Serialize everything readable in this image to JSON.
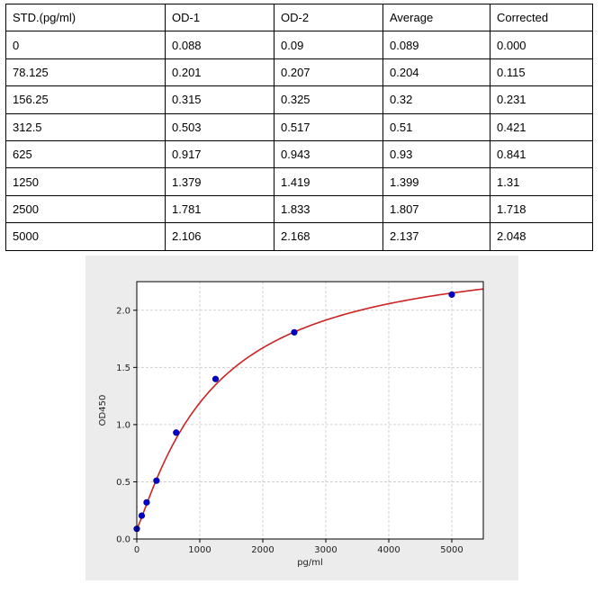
{
  "table": {
    "headers": [
      "STD.(pg/ml)",
      "OD-1",
      "OD-2",
      "Average",
      "Corrected"
    ],
    "rows": [
      [
        "0",
        "0.088",
        "0.09",
        "0.089",
        "0.000"
      ],
      [
        "78.125",
        "0.201",
        "0.207",
        "0.204",
        "0.115"
      ],
      [
        "156.25",
        "0.315",
        "0.325",
        "0.32",
        "0.231"
      ],
      [
        "312.5",
        "0.503",
        "0.517",
        "0.51",
        "0.421"
      ],
      [
        "625",
        "0.917",
        "0.943",
        "0.93",
        "0.841"
      ],
      [
        "1250",
        "1.379",
        "1.419",
        "1.399",
        "1.31"
      ],
      [
        "2500",
        "1.781",
        "1.833",
        "1.807",
        "1.718"
      ],
      [
        "5000",
        "2.106",
        "2.168",
        "2.137",
        "2.048"
      ]
    ]
  },
  "chart_data": {
    "type": "scatter",
    "title": "",
    "xlabel": "pg/ml",
    "ylabel": "OD450",
    "xlim": [
      0,
      5500
    ],
    "ylim": [
      0,
      2.25
    ],
    "xticks": [
      0,
      1000,
      2000,
      3000,
      4000,
      5000
    ],
    "yticks": [
      0.0,
      0.5,
      1.0,
      1.5,
      2.0
    ],
    "grid": true,
    "series": [
      {
        "points": [
          [
            0,
            0.089
          ],
          [
            78.125,
            0.204
          ],
          [
            156.25,
            0.32
          ],
          [
            312.5,
            0.51
          ],
          [
            625,
            0.93
          ],
          [
            1250,
            1.399
          ],
          [
            2500,
            1.807
          ],
          [
            5000,
            2.137
          ]
        ],
        "marker_color": "#0000cc"
      }
    ],
    "fit_curve": {
      "type": "4PL",
      "color": "#cc2222",
      "params": {
        "A": 0.089,
        "B": 1.15,
        "C": 1200,
        "D": 2.55
      }
    }
  }
}
